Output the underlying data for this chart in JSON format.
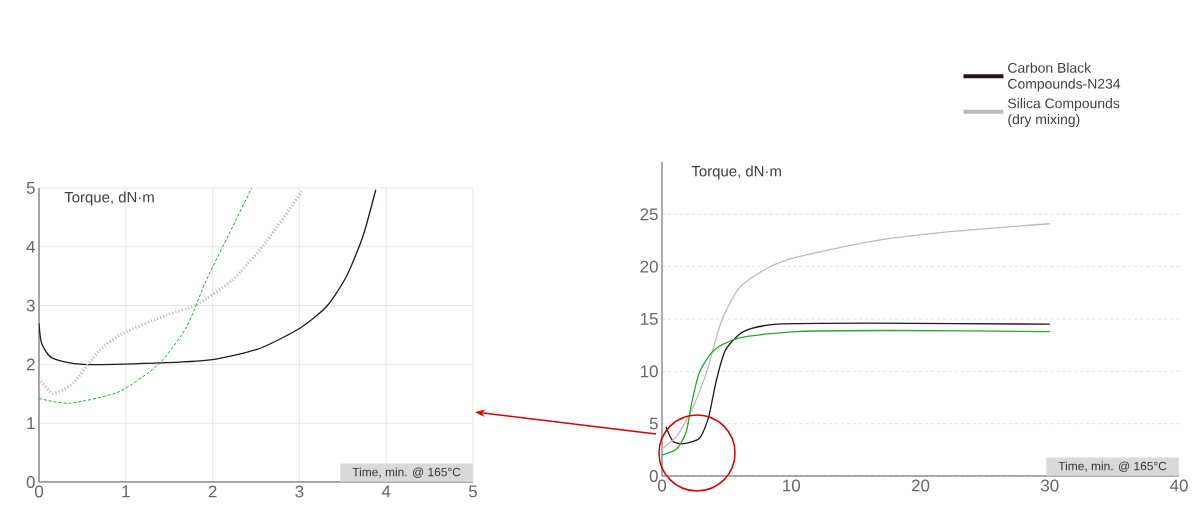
{
  "chart_data": [
    {
      "type": "line",
      "xlabel": "Time, min. @ 165°C",
      "ylabel": "Torque, dN·m",
      "xlim": [
        0,
        5
      ],
      "ylim": [
        0,
        5
      ],
      "xticks": [
        0,
        1,
        2,
        3,
        4,
        5
      ],
      "yticks": [
        0,
        1,
        2,
        3,
        4,
        5
      ],
      "grid": true,
      "series": [
        {
          "color": "#231815",
          "line_style": "solid",
          "x": [
            0,
            0.03,
            0.15,
            0.51,
            1.47,
            2.04,
            2.54,
            3.0,
            3.31,
            3.54,
            3.73,
            3.88
          ],
          "values": [
            2.7,
            2.36,
            2.11,
            2.0,
            2.03,
            2.09,
            2.27,
            2.61,
            2.98,
            3.49,
            4.17,
            4.97
          ]
        },
        {
          "color": "#c0c0c0",
          "line_style": "dotted",
          "x": [
            0,
            0.16,
            0.39,
            0.7,
            0.97,
            1.47,
            1.81,
            2.23,
            2.62,
            3.04
          ],
          "values": [
            1.76,
            1.51,
            1.68,
            2.24,
            2.53,
            2.84,
            3.01,
            3.44,
            4.09,
            4.97
          ]
        },
        {
          "color": "#22aa33",
          "line_style": "dashed",
          "x": [
            0,
            0.36,
            0.93,
            1.39,
            1.7,
            1.93,
            2.23,
            2.45
          ],
          "values": [
            1.42,
            1.34,
            1.54,
            2.02,
            2.64,
            3.44,
            4.34,
            5.0
          ]
        }
      ]
    },
    {
      "type": "line",
      "xlabel": "Time, min. @ 165°C",
      "ylabel": "Torque, dN·m",
      "xlim": [
        0,
        40
      ],
      "ylim": [
        0,
        30
      ],
      "xticks": [
        0,
        10,
        20,
        30,
        40
      ],
      "yticks": [
        0,
        5,
        10,
        15,
        20,
        25
      ],
      "grid": "y",
      "legend": "top right",
      "series": [
        {
          "name": "Carbon Black\nCompounds-N234",
          "color": "#231815",
          "x": [
            0.3,
            0.86,
            1.7,
            2.9,
            3.6,
            4.2,
            4.9,
            6.3,
            8.9,
            16.1,
            30
          ],
          "values": [
            4.7,
            3.3,
            3.1,
            3.6,
            5.6,
            9.1,
            12.0,
            13.8,
            14.5,
            14.6,
            14.5
          ]
        },
        {
          "name": "Silica Compounds\n(dry mixing)",
          "color": "#bbbbbb",
          "x": [
            0,
            1.15,
            2.3,
            3.45,
            4.6,
            6.0,
            8.06,
            10.4,
            16.1,
            21.9,
            30
          ],
          "values": [
            2.6,
            3.8,
            6.3,
            9.9,
            14.8,
            18.0,
            19.8,
            20.9,
            22.4,
            23.3,
            24.1
          ]
        },
        {
          "color": "#22aa33",
          "x": [
            0,
            1.15,
            1.87,
            2.3,
            2.9,
            4.0,
            6.0,
            10.4,
            17.6,
            30
          ],
          "values": [
            2.0,
            2.6,
            4.2,
            7.0,
            9.9,
            12.0,
            13.2,
            13.8,
            13.9,
            13.8
          ]
        }
      ]
    }
  ]
}
